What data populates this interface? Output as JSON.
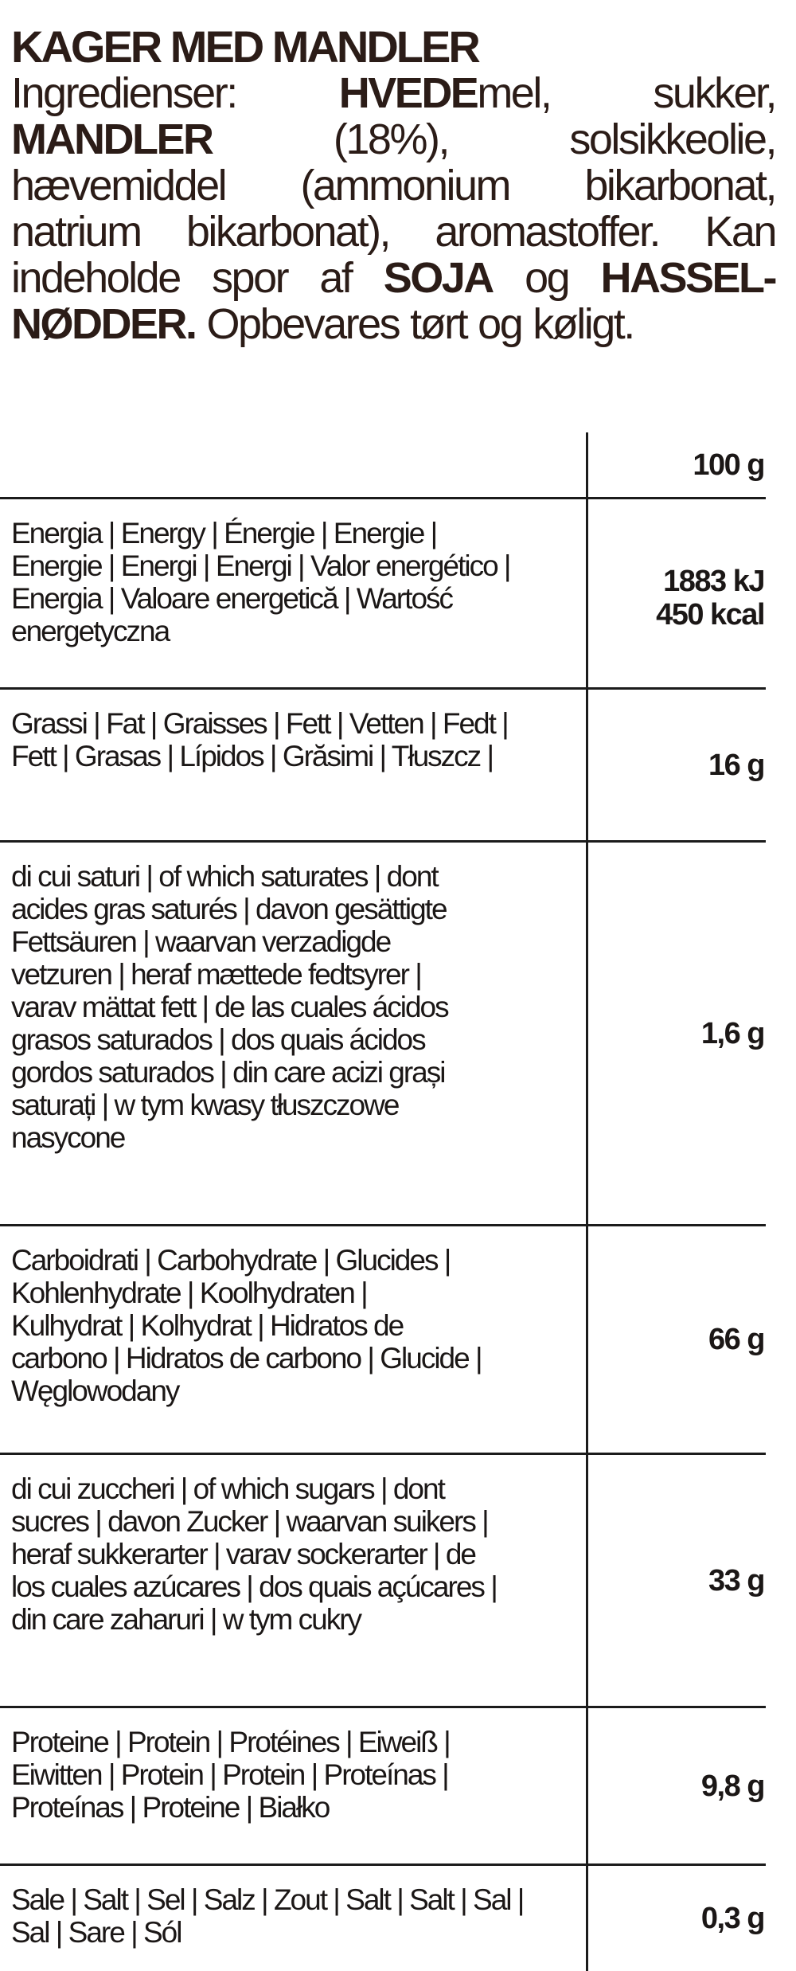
{
  "product_title": "KAGER MED MANDLER",
  "ingredients_lines": [
    [
      "Ingredienser:",
      "HVEDEmel,",
      "sukker,"
    ],
    [
      "MANDLER",
      "(18%),",
      "solsikkeolie,"
    ],
    [
      "hævemiddel",
      "(ammonium",
      "bikarbonat,"
    ],
    [
      "natrium",
      "bikarbonat),",
      "aromastoffer.",
      "Kan"
    ],
    [
      "indeholde",
      "spor",
      "af",
      "SOJA",
      "og",
      "HASSEL-"
    ],
    [
      "NØDDER.",
      "Opbevares",
      "tørt",
      "og",
      "køligt."
    ]
  ],
  "nutrition": {
    "header_value": "100 g",
    "rows": [
      {
        "label_lines": [
          "Energia | Energy | Énergie | Energie |",
          "Energie | Energi | Energi | Valor energético |",
          "Energia | Valoare energetică | Wartość",
          "energetyczna"
        ],
        "values": [
          "1883 kJ",
          "450 kcal"
        ]
      },
      {
        "label_lines": [
          "Grassi | Fat | Graisses | Fett | Vetten | Fedt |",
          "Fett | Grasas | Lípidos | Grăsimi | Tłuszcz |"
        ],
        "values": [
          "16 g"
        ]
      },
      {
        "label_lines": [
          "di cui saturi | of which saturates | dont",
          "acides gras saturés | davon gesättigte",
          "Fettsäuren | waarvan verzadigde",
          "vetzuren | heraf mættede fedtsyrer |",
          "varav mättat fett | de las cuales ácidos",
          "grasos saturados | dos quais ácidos",
          "gordos saturados | din care acizi grași",
          "saturați | w tym kwasy tłuszczowe",
          "nasycone"
        ],
        "values": [
          "1,6 g"
        ]
      },
      {
        "label_lines": [
          "Carboidrati | Carbohydrate | Glucides |",
          "Kohlenhydrate | Koolhydraten |",
          "Kulhydrat | Kolhydrat | Hidratos de",
          "carbono | Hidratos de carbono | Glucide |",
          "Węglowodany"
        ],
        "values": [
          "66 g"
        ]
      },
      {
        "label_lines": [
          "di cui zuccheri | of which sugars | dont",
          "sucres | davon Zucker | waarvan suikers |",
          "heraf sukkerarter | varav sockerarter | de",
          "los cuales azúcares | dos quais açúcares |",
          "din care zaharuri | w tym cukry"
        ],
        "values": [
          "33 g"
        ]
      },
      {
        "label_lines": [
          "Proteine | Protein | Protéines | Eiweiß |",
          "Eiwitten | Protein | Protein | Proteínas |",
          "Proteínas | Proteine | Białko"
        ],
        "values": [
          "9,8 g"
        ]
      },
      {
        "label_lines": [
          "Sale | Salt | Sel | Salz | Zout | Salt | Salt | Sal |",
          "Sal | Sare | Sól"
        ],
        "values": [
          "0,3 g"
        ]
      }
    ]
  }
}
